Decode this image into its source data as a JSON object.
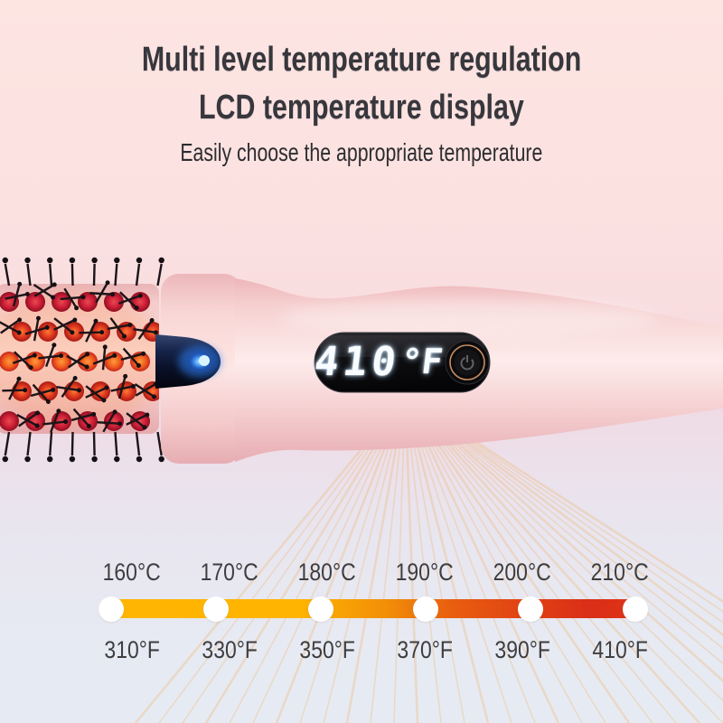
{
  "header": {
    "title_line1": "Multi level temperature regulation",
    "title_line2": "LCD temperature display",
    "subtitle": "Easily choose the appropriate temperature"
  },
  "product": {
    "lcd_display": {
      "value": "410",
      "unit": "°F"
    }
  },
  "temperature_scale": {
    "celsius": [
      "160°C",
      "170°C",
      "180°C",
      "190°C",
      "200°C",
      "210°C"
    ],
    "fahrenheit": [
      "310°F",
      "330°F",
      "350°F",
      "370°F",
      "390°F",
      "410°F"
    ]
  },
  "colors": {
    "background_top": "#fde5e2",
    "background_bottom": "#e6ebf3",
    "title_text": "#37373d",
    "scale_label_text": "#3e3e40",
    "bar_gradient_start": "#ffb502",
    "bar_gradient_end": "#de3416",
    "lcd_text": "#f8fcff",
    "led_blue": "#4da4ff",
    "rose_gold_ring": "#c98d62",
    "heat_ray": "#eebc84"
  }
}
